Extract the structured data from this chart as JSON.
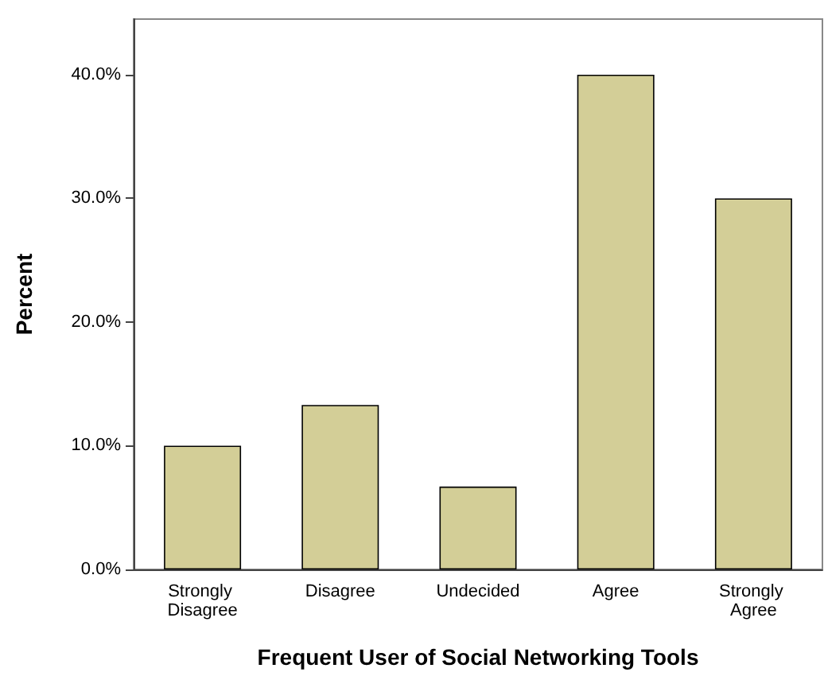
{
  "chart_data": {
    "type": "bar",
    "xlabel": "Frequent User of Social Networking Tools",
    "ylabel": "Percent",
    "categories": [
      "Strongly Disagree",
      "Disagree",
      "Undecided",
      "Agree",
      "Strongly Agree"
    ],
    "values": [
      10,
      13.3,
      6.7,
      40,
      30
    ],
    "color": "#d3ce97",
    "ylim": [
      0,
      44.5
    ],
    "yticks": [
      {
        "value": 0,
        "label": "0.0%"
      },
      {
        "value": 10,
        "label": "10.0%"
      },
      {
        "value": 20,
        "label": "20.0%"
      },
      {
        "value": 30,
        "label": "30.0%"
      },
      {
        "value": 40,
        "label": "40.0%"
      }
    ],
    "grid": false
  }
}
